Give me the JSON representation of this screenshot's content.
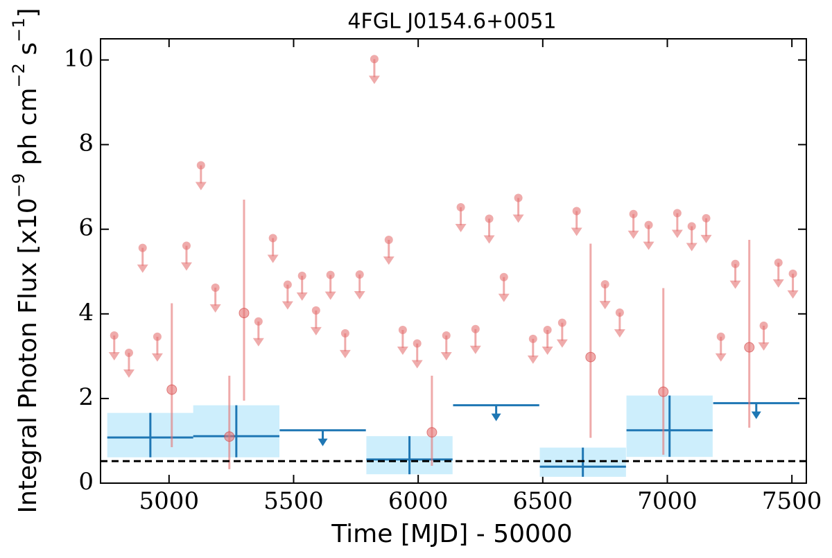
{
  "chart_data": {
    "type": "lightcurve",
    "title": "4FGL J0154.6+0051",
    "xlabel": "Time [MJD] - 50000",
    "ylabel": [
      "Integral Photon Flux [x10",
      "−9",
      " ph cm",
      "−2",
      " s",
      "−1",
      "]"
    ],
    "xlim": [
      4725,
      7558
    ],
    "ylim": [
      0,
      10.5
    ],
    "xticks": [
      5000,
      5500,
      6000,
      6500,
      7000,
      7500
    ],
    "yticks": [
      0,
      2,
      4,
      6,
      8,
      10
    ],
    "series": [
      {
        "style": "upper_limit",
        "color": "#e57373",
        "x": [
          4780,
          4839,
          4894,
          4953,
          5070,
          5128,
          5186,
          5359,
          5417,
          5476,
          5534,
          5590,
          5648,
          5707,
          5765,
          5824,
          5882,
          5938,
          5996,
          6113,
          6171,
          6230,
          6285,
          6344,
          6402,
          6461,
          6519,
          6578,
          6636,
          6750,
          6809,
          6864,
          6925,
          7040,
          7098,
          7156,
          7215,
          7273,
          7387,
          7446,
          7504
        ],
        "values": [
          3.49,
          3.08,
          5.56,
          3.46,
          5.61,
          7.51,
          4.62,
          3.82,
          5.79,
          4.69,
          4.9,
          4.08,
          4.92,
          3.54,
          4.93,
          10.02,
          5.75,
          3.62,
          3.3,
          3.49,
          6.52,
          3.64,
          6.25,
          4.87,
          6.74,
          3.41,
          3.62,
          3.79,
          6.43,
          4.7,
          4.03,
          6.36,
          6.1,
          6.38,
          6.07,
          6.26,
          3.46,
          5.18,
          3.72,
          5.21,
          4.95
        ]
      },
      {
        "style": "errorbar",
        "color": "#e57373",
        "x": [
          5011,
          5242,
          5301,
          6055,
          6692,
          6984,
          7329
        ],
        "values": [
          2.21,
          1.1,
          4.02,
          1.2,
          2.98,
          2.16,
          3.21
        ],
        "lower": [
          0.85,
          0.33,
          1.95,
          0.41,
          1.07,
          0.67,
          1.31
        ],
        "upper": [
          4.25,
          2.54,
          6.7,
          2.54,
          5.66,
          4.61,
          5.75
        ]
      },
      {
        "style": "bin",
        "color": "#1f77b4",
        "fill": "#cdeefc",
        "x": [
          4925,
          5270,
          5965,
          6661,
          7009
        ],
        "xerr": [
          173,
          173,
          173,
          173,
          173
        ],
        "values": [
          1.08,
          1.11,
          0.56,
          0.39,
          1.25
        ],
        "lower": [
          0.61,
          0.61,
          0.21,
          0.15,
          0.62
        ],
        "upper": [
          1.66,
          1.84,
          1.11,
          0.84,
          2.07
        ]
      },
      {
        "style": "bin_upper_limit",
        "color": "#1f77b4",
        "x": [
          5617,
          6313,
          7357
        ],
        "xerr": [
          173,
          173,
          173
        ],
        "values": [
          1.25,
          1.84,
          1.89
        ]
      }
    ],
    "hline": {
      "value": 0.52,
      "color": "#000000"
    }
  }
}
